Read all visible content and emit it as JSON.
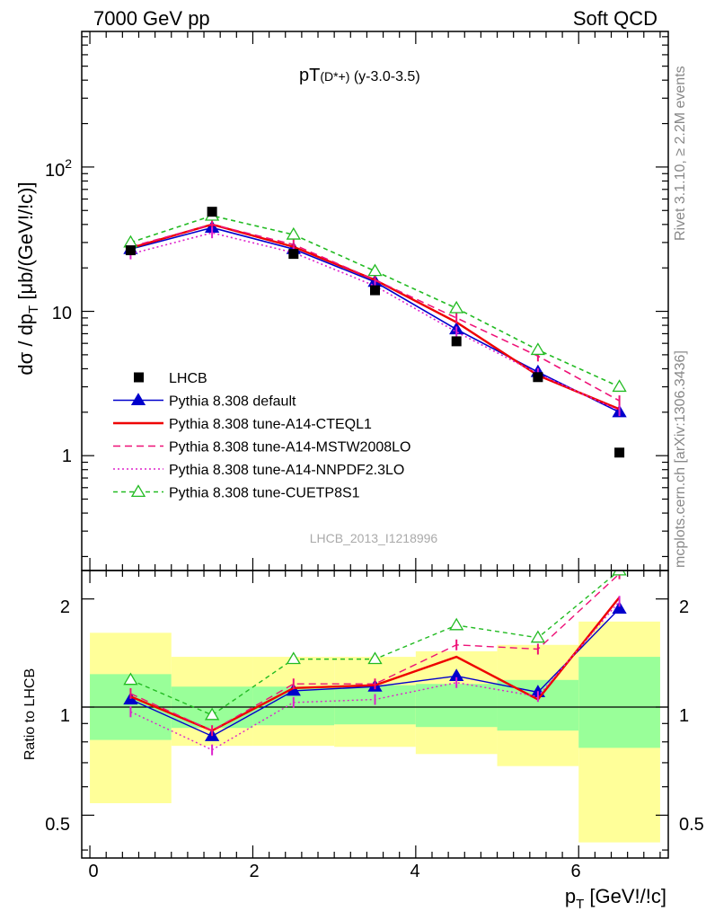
{
  "header": {
    "left": "7000 GeV pp",
    "right": "Soft QCD"
  },
  "side_labels": {
    "rivet": "Rivet 3.1.10, ≥ 2.2M events",
    "mcplots": "mcplots.cern.ch [arXiv:1306.3436]"
  },
  "main": {
    "title_main": "pT",
    "title_sub": "(D*+)",
    "title_rest": " (y-3.0-3.5)",
    "ylabel": "dσ / dp",
    "ylabel_sub": "T",
    "ylabel_tail": " [μb/(GeV!/!c)]",
    "watermark": "LHCB_2013_I1218996",
    "ytick_labels": [
      "10",
      "1",
      "10"
    ]
  },
  "ratio": {
    "ylabel": "Ratio to LHCB",
    "ytick_labels": [
      "0.5",
      "1",
      "2"
    ]
  },
  "xaxis": {
    "label": "p",
    "label_sub": "T",
    "label_tail": " [GeV!/!c]",
    "tick_labels": [
      "0",
      "2",
      "4",
      "6"
    ]
  },
  "chart_data": {
    "type": "line",
    "x_bin_edges": [
      0,
      1,
      2,
      3,
      4,
      5,
      6,
      7
    ],
    "x": [
      0.5,
      1.5,
      2.5,
      3.5,
      4.5,
      5.5,
      6.5
    ],
    "xlim": [
      -0.1,
      7.1
    ],
    "yscale": "log",
    "ylim": [
      0.16,
      870
    ],
    "ratio_ylim": [
      0.38,
      2.4
    ],
    "legend_position": "lower-left",
    "data": {
      "name": "LHCB",
      "values": [
        26.5,
        49,
        25,
        14,
        6.2,
        3.5,
        1.05
      ]
    },
    "band_inner": {
      "lower": [
        0.81,
        0.875,
        0.89,
        0.895,
        0.88,
        0.86,
        0.77
      ],
      "upper": [
        1.235,
        1.14,
        1.14,
        1.15,
        1.16,
        1.19,
        1.38
      ]
    },
    "band_outer": {
      "lower": [
        0.54,
        0.78,
        0.78,
        0.775,
        0.74,
        0.685,
        0.42
      ],
      "upper": [
        1.61,
        1.38,
        1.38,
        1.38,
        1.43,
        1.49,
        1.73
      ]
    },
    "series": [
      {
        "name": "Pythia 8.308 default",
        "color": "#0000cc",
        "dash": "",
        "marker": "triangle-filled",
        "values": [
          27,
          38,
          27,
          16,
          7.5,
          3.8,
          2.0
        ],
        "ratio": [
          1.05,
          0.83,
          1.11,
          1.14,
          1.22,
          1.1,
          1.88
        ]
      },
      {
        "name": "Pythia 8.308 tune-A14-CTEQL1",
        "color": "#ee0000",
        "dash": "",
        "marker": "none",
        "values": [
          27.5,
          40,
          28,
          16.5,
          8.4,
          3.6,
          2.1
        ],
        "ratio": [
          1.07,
          0.86,
          1.13,
          1.15,
          1.38,
          1.05,
          2.02
        ]
      },
      {
        "name": "Pythia 8.308 tune-A14-MSTW2008LO",
        "color": "#ee1177",
        "dash": "8,5",
        "marker": "bars",
        "values": [
          28,
          40,
          29,
          16.5,
          9.0,
          4.9,
          2.4
        ],
        "ratio": [
          1.09,
          0.86,
          1.16,
          1.16,
          1.49,
          1.45,
          2.35
        ]
      },
      {
        "name": "Pythia 8.308 tune-A14-NNPDF2.3LO",
        "color": "#dd22cc",
        "dash": "2,3",
        "marker": "bars",
        "values": [
          25,
          35,
          25.5,
          15,
          7.2,
          3.7,
          2.05
        ],
        "ratio": [
          0.97,
          0.76,
          1.03,
          1.05,
          1.17,
          1.07,
          1.97
        ]
      },
      {
        "name": "Pythia 8.308 tune-CUETP8S1",
        "color": "#22bb22",
        "dash": "5,4",
        "marker": "triangle-open",
        "values": [
          30,
          46,
          34,
          19,
          10.5,
          5.4,
          3.0
        ],
        "ratio": [
          1.19,
          0.95,
          1.36,
          1.36,
          1.69,
          1.56,
          2.85
        ]
      }
    ]
  }
}
